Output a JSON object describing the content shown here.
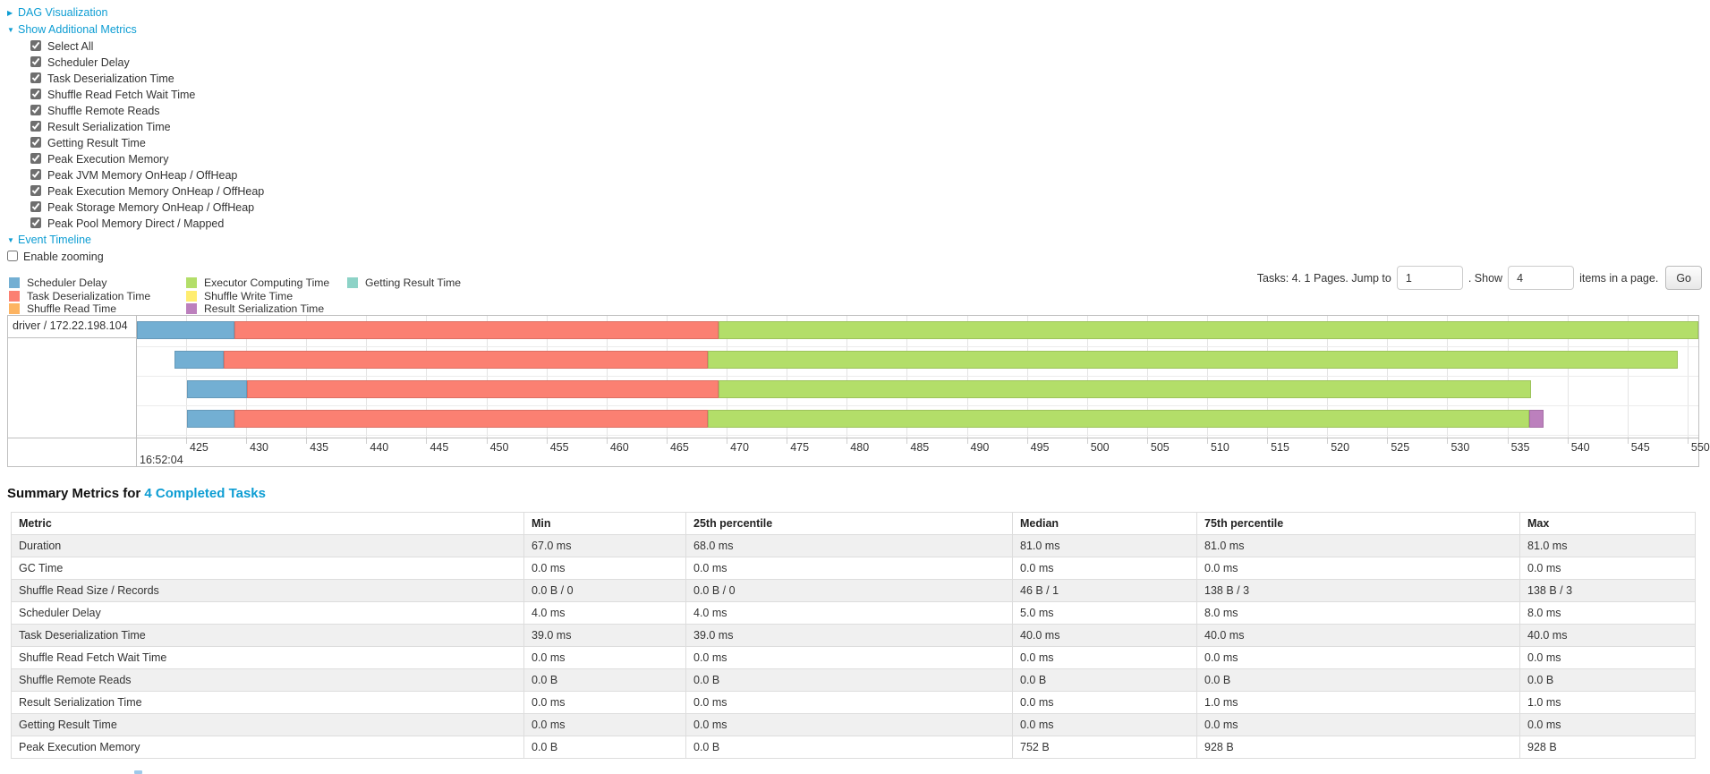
{
  "colors": {
    "link": "#0d9dd3",
    "chart_border": "#bfbfbf"
  },
  "controls": {
    "dag_link": "DAG Visualization",
    "metrics_link": "Show Additional Metrics",
    "metrics_checkboxes": [
      "Select All",
      "Scheduler Delay",
      "Task Deserialization Time",
      "Shuffle Read Fetch Wait Time",
      "Shuffle Remote Reads",
      "Result Serialization Time",
      "Getting Result Time",
      "Peak Execution Memory",
      "Peak JVM Memory OnHeap / OffHeap",
      "Peak Execution Memory OnHeap / OffHeap",
      "Peak Storage Memory OnHeap / OffHeap",
      "Peak Pool Memory Direct / Mapped"
    ],
    "timeline_link": "Event Timeline",
    "enable_zooming_label": "Enable zooming"
  },
  "pagination": {
    "prefix": "Tasks: 4. 1 Pages. Jump to",
    "jump_value": "1",
    "between": ". Show",
    "show_value": "4",
    "suffix": "items in a page.",
    "go_label": "Go"
  },
  "chart_data": {
    "type": "timeline",
    "group_label": "driver / 172.22.198.104",
    "axis": {
      "min": 420.9,
      "max": 550.9,
      "ticks": [
        425,
        430,
        435,
        440,
        445,
        450,
        455,
        460,
        465,
        470,
        475,
        480,
        485,
        490,
        495,
        500,
        505,
        510,
        515,
        520,
        525,
        530,
        535,
        540,
        545,
        550
      ],
      "major_label": "16:52:04"
    },
    "legend": [
      {
        "label": "Scheduler Delay",
        "color": "#73AFD3"
      },
      {
        "label": "Task Deserialization Time",
        "color": "#FB8072"
      },
      {
        "label": "Shuffle Read Time",
        "color": "#FDB462"
      },
      {
        "label": "Executor Computing Time",
        "color": "#B3DE69"
      },
      {
        "label": "Shuffle Write Time",
        "color": "#FFED6F"
      },
      {
        "label": "Result Serialization Time",
        "color": "#BC80BD"
      },
      {
        "label": "Getting Result Time",
        "color": "#8DD3C7"
      }
    ],
    "legend_columns": [
      [
        0,
        1,
        2
      ],
      [
        3,
        4,
        5
      ],
      [
        6
      ]
    ],
    "tasks": [
      {
        "segments": [
          {
            "name": "scheduler-delay",
            "start": 420.9,
            "end": 429.0,
            "color": "#73AFD3"
          },
          {
            "name": "task-deserialization",
            "start": 429.0,
            "end": 469.3,
            "color": "#FB8072"
          },
          {
            "name": "executor-computing",
            "start": 469.3,
            "end": 550.9,
            "color": "#B3DE69"
          }
        ]
      },
      {
        "segments": [
          {
            "name": "scheduler-delay",
            "start": 424.0,
            "end": 428.1,
            "color": "#73AFD3"
          },
          {
            "name": "task-deserialization",
            "start": 428.1,
            "end": 468.4,
            "color": "#FB8072"
          },
          {
            "name": "executor-computing",
            "start": 468.4,
            "end": 549.2,
            "color": "#B3DE69"
          }
        ]
      },
      {
        "segments": [
          {
            "name": "scheduler-delay",
            "start": 425.1,
            "end": 430.1,
            "color": "#73AFD3"
          },
          {
            "name": "task-deserialization",
            "start": 430.1,
            "end": 469.3,
            "color": "#FB8072"
          },
          {
            "name": "executor-computing",
            "start": 469.3,
            "end": 537.0,
            "color": "#B3DE69"
          }
        ]
      },
      {
        "segments": [
          {
            "name": "scheduler-delay",
            "start": 425.1,
            "end": 429.0,
            "color": "#73AFD3"
          },
          {
            "name": "task-deserialization",
            "start": 429.0,
            "end": 468.4,
            "color": "#FB8072"
          },
          {
            "name": "executor-computing",
            "start": 468.4,
            "end": 536.8,
            "color": "#B3DE69"
          },
          {
            "name": "result-serialization",
            "start": 536.8,
            "end": 538.0,
            "color": "#BC80BD"
          }
        ]
      }
    ]
  },
  "summary": {
    "title_prefix": "Summary Metrics for",
    "title_link": "4 Completed Tasks",
    "table": {
      "headers": [
        "Metric",
        "Min",
        "25th percentile",
        "Median",
        "75th percentile",
        "Max"
      ],
      "rows": [
        [
          "Duration",
          "67.0 ms",
          "68.0 ms",
          "81.0 ms",
          "81.0 ms",
          "81.0 ms"
        ],
        [
          "GC Time",
          "0.0 ms",
          "0.0 ms",
          "0.0 ms",
          "0.0 ms",
          "0.0 ms"
        ],
        [
          "Shuffle Read Size / Records",
          "0.0 B / 0",
          "0.0 B / 0",
          "46 B / 1",
          "138 B / 3",
          "138 B / 3"
        ],
        [
          "Scheduler Delay",
          "4.0 ms",
          "4.0 ms",
          "5.0 ms",
          "8.0 ms",
          "8.0 ms"
        ],
        [
          "Task Deserialization Time",
          "39.0 ms",
          "39.0 ms",
          "40.0 ms",
          "40.0 ms",
          "40.0 ms"
        ],
        [
          "Shuffle Read Fetch Wait Time",
          "0.0 ms",
          "0.0 ms",
          "0.0 ms",
          "0.0 ms",
          "0.0 ms"
        ],
        [
          "Shuffle Remote Reads",
          "0.0 B",
          "0.0 B",
          "0.0 B",
          "0.0 B",
          "0.0 B"
        ],
        [
          "Result Serialization Time",
          "0.0 ms",
          "0.0 ms",
          "0.0 ms",
          "1.0 ms",
          "1.0 ms"
        ],
        [
          "Getting Result Time",
          "0.0 ms",
          "0.0 ms",
          "0.0 ms",
          "0.0 ms",
          "0.0 ms"
        ],
        [
          "Peak Execution Memory",
          "0.0 B",
          "0.0 B",
          "752 B",
          "928 B",
          "928 B"
        ]
      ]
    }
  }
}
